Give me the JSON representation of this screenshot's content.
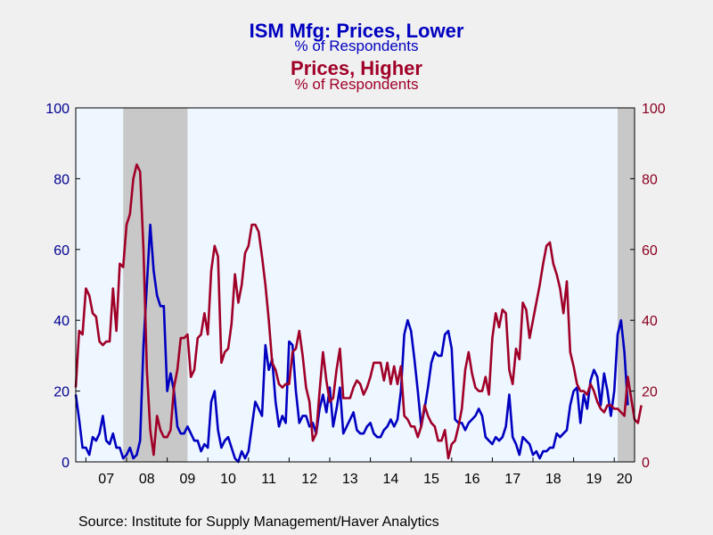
{
  "chart_data": {
    "type": "line",
    "title": "ISM Mfg: Prices, Lower",
    "title_sub": "% of Respondents",
    "title2": "Prices, Higher",
    "title2_sub": "% of Respondents",
    "source": "Source:  Institute for Supply Management/Haver Analytics",
    "ylim": [
      0,
      100
    ],
    "y_ticks_left": [
      "0",
      "20",
      "40",
      "60",
      "80",
      "100"
    ],
    "y_ticks_right": [
      "0",
      "20",
      "40",
      "60",
      "80",
      "100"
    ],
    "x_ticks": [
      "07",
      "08",
      "09",
      "10",
      "11",
      "12",
      "13",
      "14",
      "15",
      "16",
      "17",
      "18",
      "19",
      "20"
    ],
    "x_start": 2006.75,
    "x_end": 2020.5,
    "recessions": [
      [
        2007.917,
        2009.5
      ],
      [
        2020.083,
        2020.5
      ]
    ],
    "colors": {
      "lower": "#0000c0",
      "higher": "#a00028",
      "recession": "#c8c8c8",
      "plot_bg": "#eef6ff",
      "left_axis": "#000090",
      "right_axis": "#8b0020"
    },
    "series": [
      {
        "name": "Prices, Lower",
        "axis": "left",
        "start": 2006.75,
        "values": [
          19,
          12,
          4,
          4,
          2,
          7,
          6,
          8,
          13,
          6,
          5,
          8,
          4,
          4,
          1,
          2,
          4,
          1,
          2,
          6,
          33,
          50,
          67,
          54,
          47,
          44,
          44,
          20,
          25,
          20,
          10,
          8,
          8,
          10,
          8,
          6,
          6,
          3,
          5,
          4,
          17,
          20,
          9,
          4,
          6,
          7,
          4,
          1,
          0,
          3,
          1,
          3,
          10,
          17,
          15,
          13,
          33,
          26,
          29,
          17,
          10,
          13,
          11,
          34,
          33,
          20,
          11,
          13,
          13,
          10,
          11,
          8,
          15,
          19,
          14,
          21,
          10,
          15,
          21,
          8,
          10,
          12,
          14,
          9,
          8,
          8,
          10,
          11,
          8,
          7,
          7,
          9,
          10,
          12,
          10,
          12,
          20,
          36,
          40,
          37,
          29,
          20,
          10,
          15,
          21,
          28,
          31,
          30,
          30,
          36,
          37,
          32,
          12,
          11,
          11,
          9,
          11,
          12,
          13,
          15,
          13,
          7,
          6,
          5,
          7,
          6,
          7,
          10,
          19,
          7,
          5,
          2,
          7,
          6,
          5,
          2,
          3,
          1,
          3,
          3,
          4,
          4,
          8,
          7,
          8,
          9,
          16,
          20,
          21,
          11,
          19,
          15,
          23,
          26,
          24,
          16,
          25,
          20,
          13,
          20,
          36,
          40,
          31,
          16
        ]
      },
      {
        "name": "Prices, Higher",
        "axis": "right",
        "start": 2006.75,
        "values": [
          21,
          37,
          36,
          49,
          47,
          42,
          41,
          34,
          33,
          34,
          34,
          49,
          37,
          56,
          55,
          67,
          70,
          80,
          84,
          82,
          60,
          26,
          9,
          2,
          13,
          9,
          7,
          7,
          9,
          21,
          26,
          35,
          35,
          36,
          24,
          26,
          35,
          36,
          42,
          36,
          54,
          61,
          58,
          28,
          31,
          32,
          39,
          53,
          45,
          50,
          59,
          61,
          67,
          67,
          65,
          58,
          50,
          40,
          28,
          26,
          22,
          21,
          22,
          22,
          31,
          32,
          37,
          30,
          21,
          17,
          6,
          8,
          20,
          31,
          23,
          17,
          18,
          26,
          32,
          18,
          18,
          18,
          21,
          23,
          22,
          19,
          21,
          24,
          28,
          28,
          28,
          23,
          28,
          22,
          27,
          22,
          27,
          13,
          12,
          10,
          10,
          7,
          10,
          16,
          13,
          11,
          10,
          6,
          6,
          9,
          1,
          5,
          6,
          10,
          15,
          26,
          31,
          25,
          21,
          20,
          20,
          24,
          19,
          35,
          42,
          38,
          43,
          42,
          26,
          22,
          32,
          29,
          45,
          43,
          35,
          40,
          45,
          50,
          56,
          61,
          62,
          56,
          53,
          49,
          42,
          51,
          31,
          27,
          22,
          20,
          20,
          19,
          22,
          20,
          17,
          15,
          14,
          16,
          16,
          15,
          15,
          14,
          13,
          24,
          18,
          12,
          11,
          16
        ]
      }
    ]
  }
}
